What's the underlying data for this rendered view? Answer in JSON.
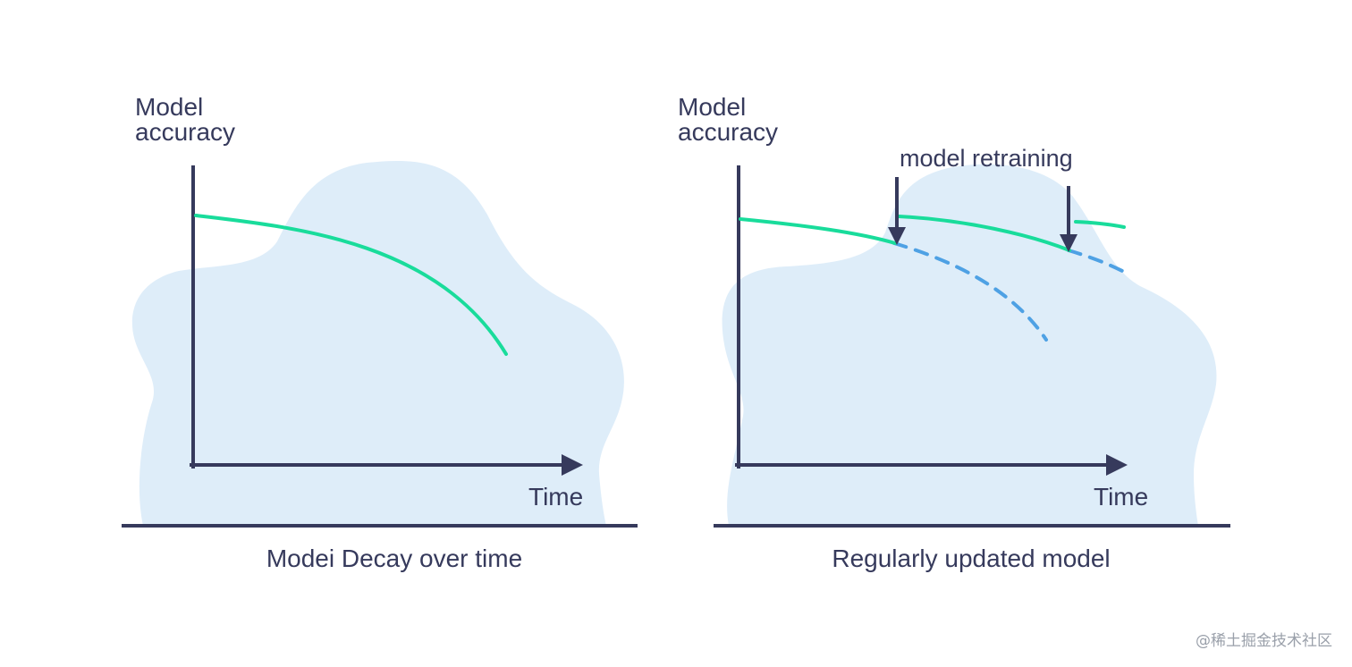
{
  "colors": {
    "blob": "#deedf9",
    "axis": "#363a5c",
    "accuracy_line": "#19dc9b",
    "decay_projection": "#4ea1e4",
    "text": "#363a5c"
  },
  "left_panel": {
    "y_axis_label_line1": "Model",
    "y_axis_label_line2": "accuracy",
    "x_axis_label": "Time",
    "caption": "Modei Decay over time"
  },
  "right_panel": {
    "y_axis_label_line1": "Model",
    "y_axis_label_line2": "accuracy",
    "x_axis_label": "Time",
    "annotation": "model retraining",
    "caption": "Regularly updated model"
  },
  "watermark": "@稀土掘金技术社区"
}
